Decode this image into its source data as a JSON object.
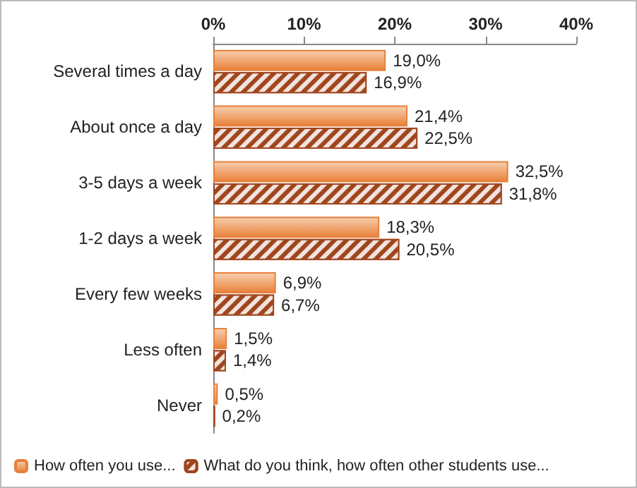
{
  "chart_data": {
    "type": "bar",
    "orientation": "horizontal",
    "categories": [
      "Several times a day",
      "About once a day",
      "3-5 days a week",
      "1-2 days a week",
      "Every few weeks",
      "Less often",
      "Never"
    ],
    "series": [
      {
        "name": "How often you use...",
        "color": "#e8803a",
        "values": [
          19.0,
          21.4,
          32.5,
          18.3,
          6.9,
          1.5,
          0.5
        ],
        "value_labels": [
          "19,0%",
          "21,4%",
          "32,5%",
          "18,3%",
          "6,9%",
          "1,5%",
          "0,5%"
        ]
      },
      {
        "name": "What do you think, how often other students use...",
        "color": "#a0461e",
        "values": [
          16.9,
          22.5,
          31.8,
          20.5,
          6.7,
          1.4,
          0.2
        ],
        "value_labels": [
          "16,9%",
          "22,5%",
          "31,8%",
          "20,5%",
          "6,7%",
          "1,4%",
          "0,2%"
        ]
      }
    ],
    "xlim": [
      0,
      40
    ],
    "xticks": [
      {
        "value": 0,
        "label": "0%"
      },
      {
        "value": 10,
        "label": "10%"
      },
      {
        "value": 20,
        "label": "20%"
      },
      {
        "value": 30,
        "label": "30%"
      },
      {
        "value": 40,
        "label": "40%"
      }
    ],
    "grid": false,
    "legend": "bottom"
  }
}
